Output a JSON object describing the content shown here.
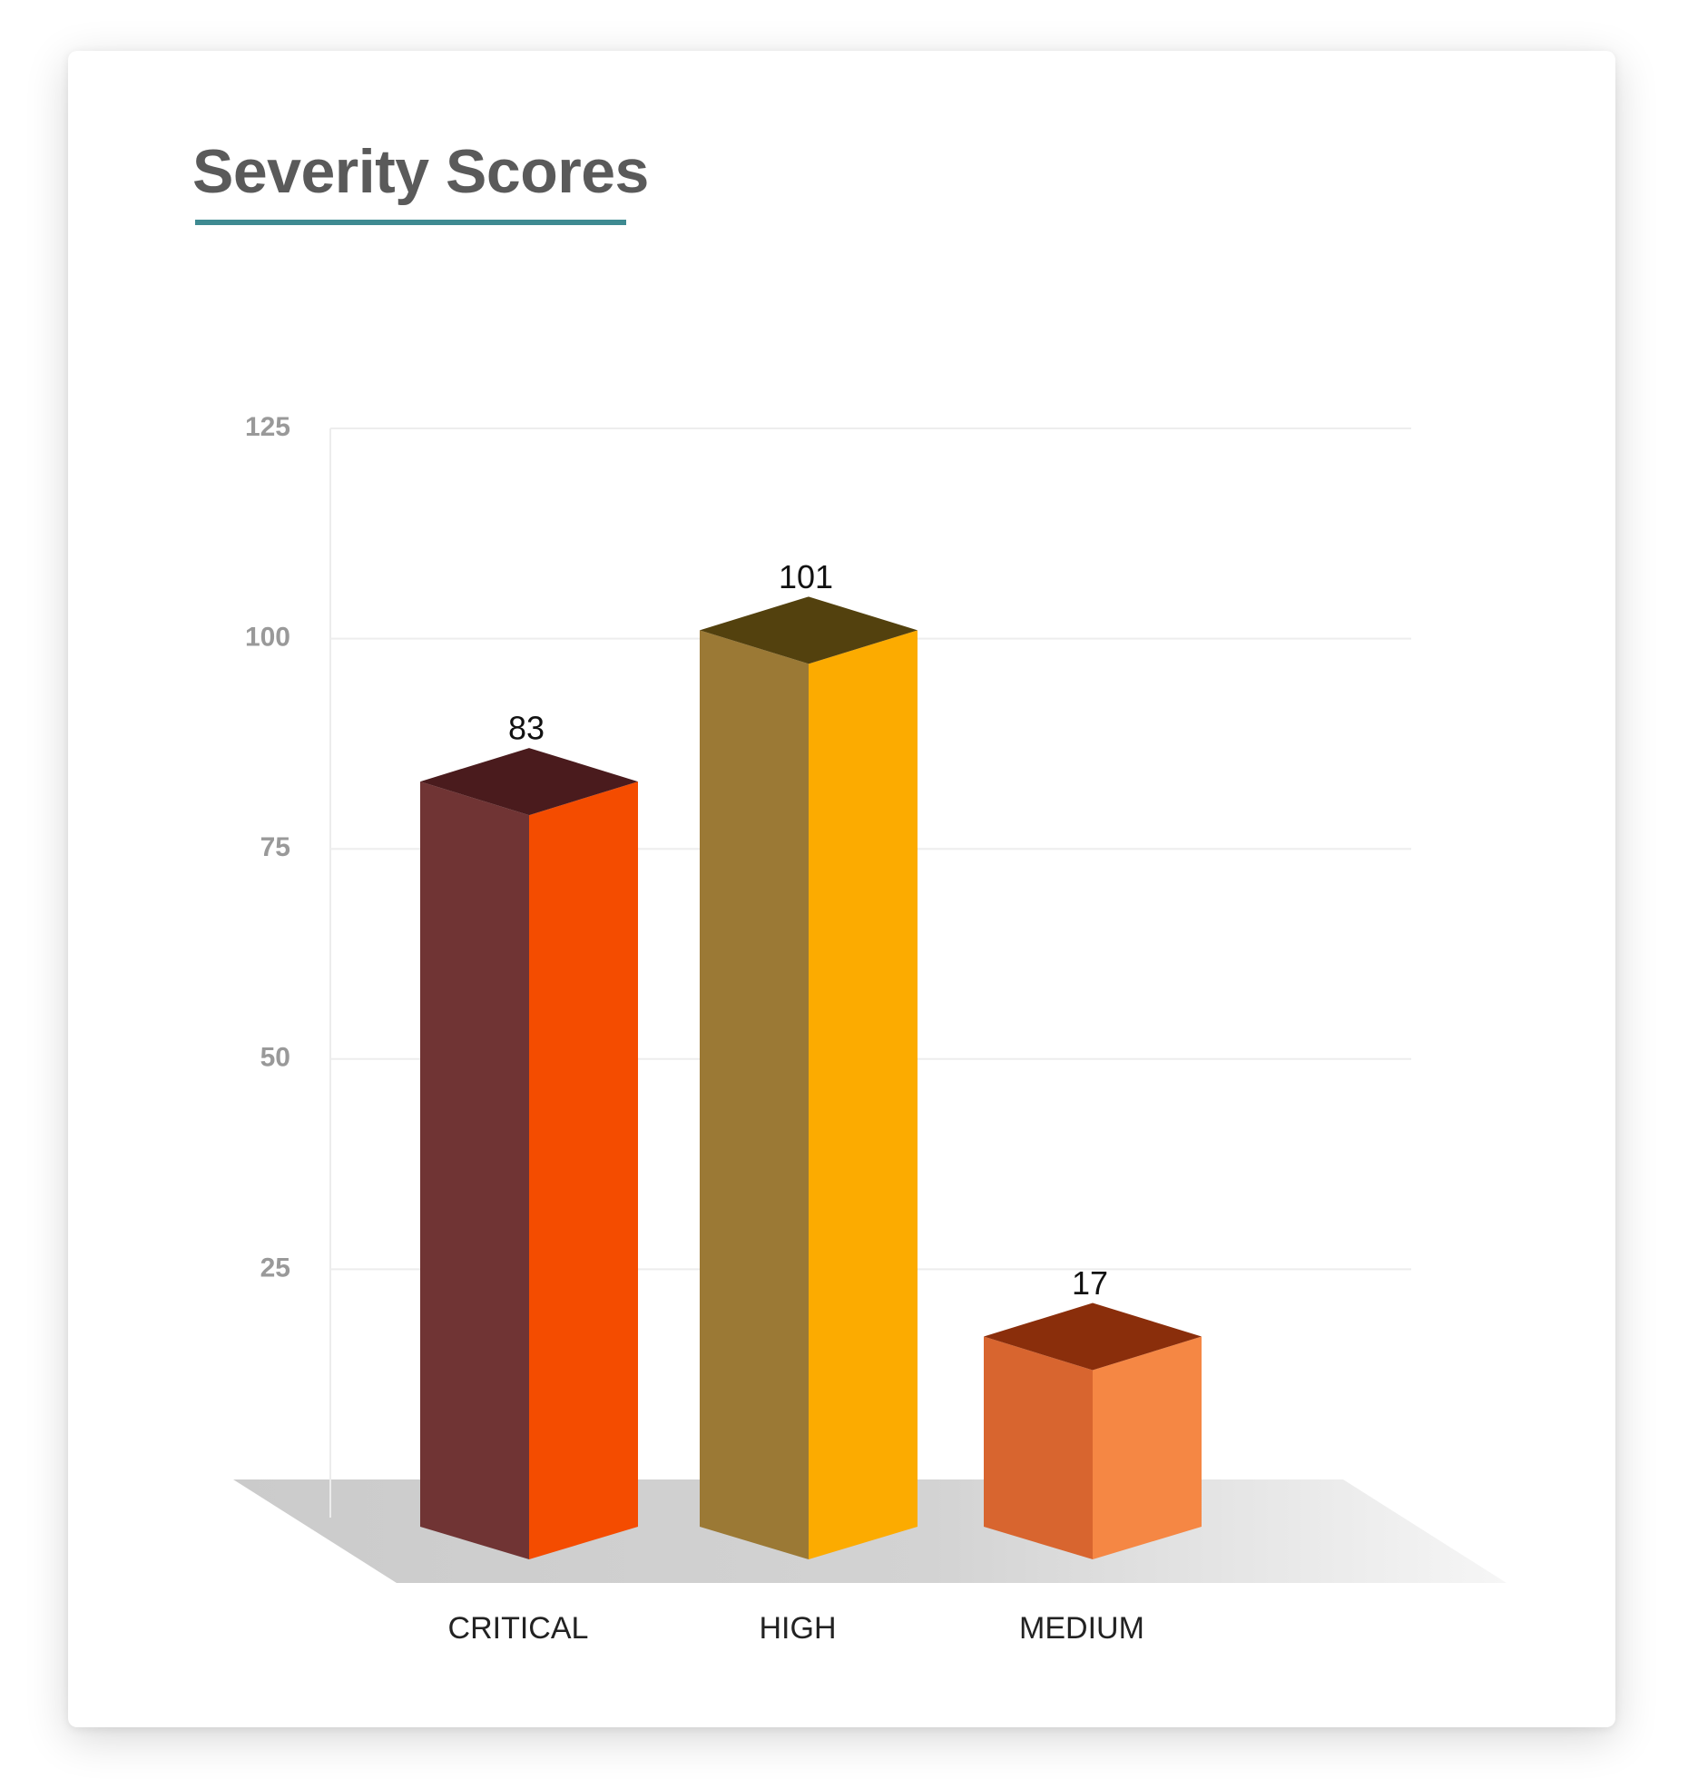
{
  "chart_data": {
    "type": "bar",
    "title": "Severity Scores",
    "categories": [
      "CRITICAL",
      "HIGH",
      "MEDIUM"
    ],
    "values": [
      83,
      101,
      17
    ],
    "ylim": [
      0,
      125
    ],
    "yticks": [
      "25",
      "50",
      "75",
      "100",
      "125"
    ],
    "grid": true,
    "colors": {
      "title_underline": "#3e8a91",
      "bars": [
        {
          "front": "#f44c00",
          "side": "#703434",
          "top": "#4a1b1d"
        },
        {
          "front": "#fcab00",
          "side": "#9b7935",
          "top": "#53410e"
        },
        {
          "front": "#f58744",
          "side": "#d8652f",
          "top": "#8a2e0b"
        }
      ]
    }
  }
}
